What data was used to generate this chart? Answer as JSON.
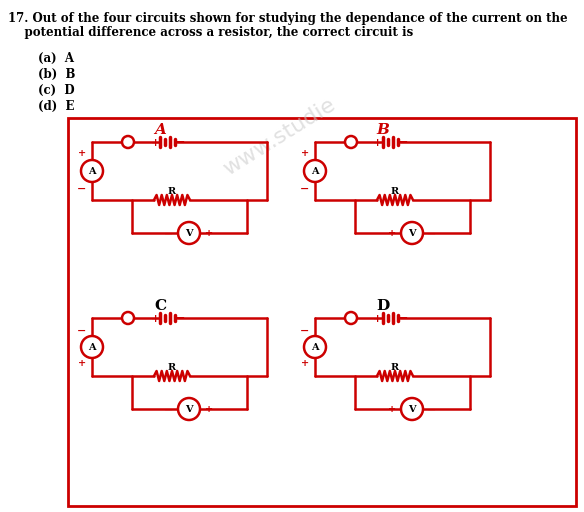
{
  "title_line1": "17. Out of the four circuits shown for studying the dependance of the current on the",
  "title_line2": "    potential difference across a resistor, the correct circuit is",
  "options": [
    "(a)  A",
    "(b)  B",
    "(c)  D",
    "(d)  E"
  ],
  "circuit_labels": [
    "A",
    "B",
    "C",
    "D"
  ],
  "label_colors": [
    "#cc0000",
    "#cc0000",
    "#000000",
    "#000000"
  ],
  "red_color": "#cc0000",
  "text_color": "#000000",
  "bg_color": "#ffffff",
  "watermark": "www.studie",
  "fig_w": 5.84,
  "fig_h": 5.12,
  "dpi": 100
}
